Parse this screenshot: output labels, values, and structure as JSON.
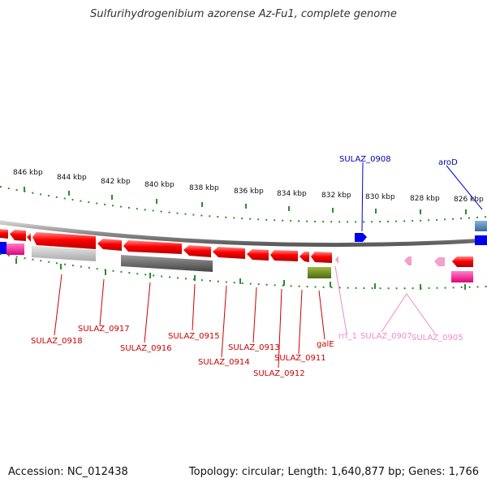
{
  "title": "Sulfurihydrogenibium azorense Az-Fu1, complete genome",
  "footer": {
    "accession": "Accession: NC_012438",
    "summary": "Topology: circular; Length: 1,640,877 bp; Genes: 1,766"
  },
  "colors": {
    "backbone": "#8a8a8a",
    "tick": "#2e8b2e",
    "cds": "#ff0000",
    "pseudo": "#f4a0c8",
    "blue": "#0000ee",
    "label_red": "#cc0000",
    "label_blue": "#0000aa",
    "label_pink": "#f08cc0"
  },
  "scale_labels": [
    "846 kbp",
    "844 kbp",
    "842 kbp",
    "840 kbp",
    "838 kbp",
    "836 kbp",
    "834 kbp",
    "832 kbp",
    "830 kbp",
    "828 kbp",
    "826 kbp"
  ],
  "gene_labels": {
    "sulaz_0908": "SULAZ_0908",
    "arod": "aroD",
    "sulaz_0918": "SULAZ_0918",
    "sulaz_0917": "SULAZ_0917",
    "sulaz_0916": "SULAZ_0916",
    "sulaz_0915": "SULAZ_0915",
    "sulaz_0914": "SULAZ_0914",
    "sulaz_0913": "SULAZ_0913",
    "sulaz_0912": "SULAZ_0912",
    "sulaz_0911": "SULAZ_0911",
    "gale": "galE",
    "rrf_1": "rrf_1",
    "sulaz_0907": "SULAZ_0907",
    "sulaz_0905": "SULAZ_0905"
  }
}
